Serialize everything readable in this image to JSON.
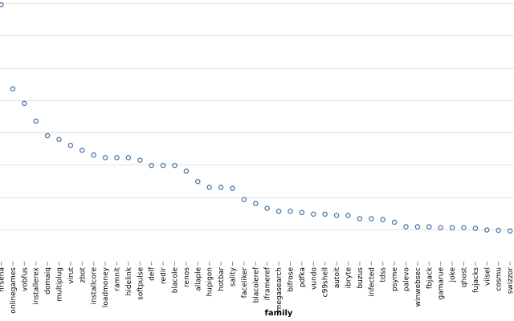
{
  "chart_data": {
    "type": "scatter",
    "title": "",
    "xlabel": "family",
    "ylabel": "",
    "ylim": [
      0,
      8.1
    ],
    "grid": true,
    "marker": "open-circle",
    "color": "#4c78a8",
    "categories": [
      "hrsena",
      "onlinegames",
      "vobfus",
      "installerex",
      "domaiq",
      "multiplug",
      "virut",
      "zbot",
      "installcore",
      "loadmoney",
      "ramnit",
      "hidelink",
      "softpulse",
      "delf",
      "redir",
      "blacole",
      "renos",
      "allaple",
      "hupigon",
      "hotbar",
      "sality",
      "faceliker",
      "blacoleref",
      "iframeref",
      "megasearch",
      "bifrose",
      "pdfka",
      "vundo",
      "c99shell",
      "autoit",
      "ibryte",
      "buzus",
      "infected",
      "tdss",
      "psyme",
      "palevo",
      "winwebsec",
      "fbjack",
      "gamarue",
      "joke",
      "qhost",
      "fujacks",
      "vilsel",
      "cosmu",
      "swizzor"
    ],
    "values": [
      7.95,
      5.35,
      4.9,
      4.35,
      3.9,
      3.78,
      3.6,
      3.45,
      3.3,
      3.22,
      3.22,
      3.22,
      3.14,
      2.98,
      2.98,
      2.98,
      2.8,
      2.48,
      2.3,
      2.3,
      2.27,
      1.92,
      1.8,
      1.65,
      1.56,
      1.56,
      1.52,
      1.47,
      1.47,
      1.43,
      1.43,
      1.33,
      1.33,
      1.3,
      1.22,
      1.08,
      1.08,
      1.08,
      1.05,
      1.05,
      1.05,
      1.03,
      0.98,
      0.97,
      0.95
    ]
  }
}
